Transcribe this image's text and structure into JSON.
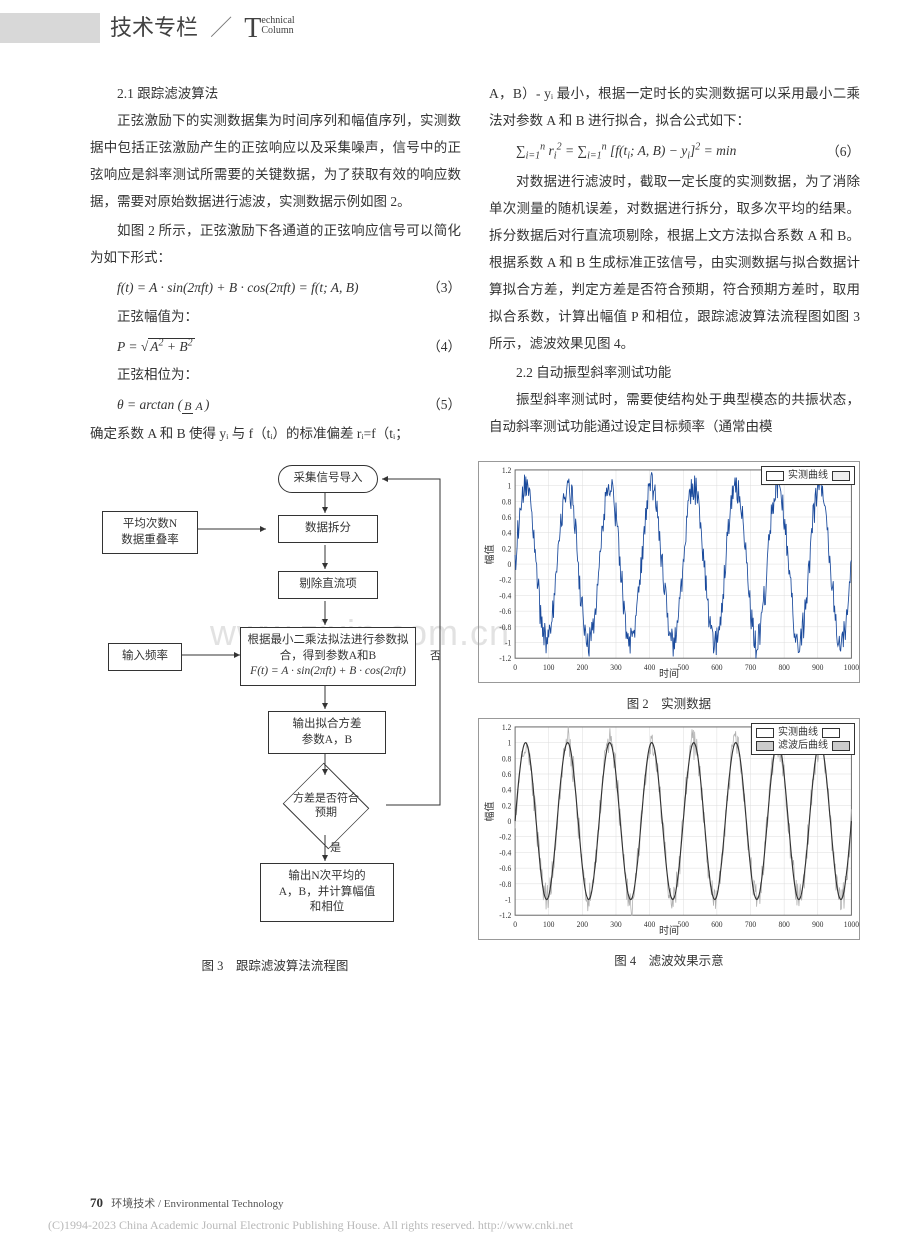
{
  "header": {
    "title_cn": "技术专栏",
    "title_en_top": "echnical",
    "title_en_bot": "Column"
  },
  "watermark": "www.zixin.com.cn",
  "left_column": {
    "subhead1": "2.1 跟踪滤波算法",
    "p1": "正弦激励下的实测数据集为时间序列和幅值序列，实测数据中包括正弦激励产生的正弦响应以及采集噪声，信号中的正弦响应是斜率测试所需要的关键数据，为了获取有效的响应数据，需要对原始数据进行滤波，实测数据示例如图 2。",
    "p2": "如图 2 所示，正弦激励下各通道的正弦响应信号可以简化为如下形式：",
    "eq3_num": "（3）",
    "p3": "正弦幅值为：",
    "eq4_num": "（4）",
    "p4": "正弦相位为：",
    "eq5_num": "（5）",
    "p5": "确定系数 A 和 B 使得 yᵢ 与 f（tᵢ）的标准偏差 rᵢ=f（tᵢ；"
  },
  "right_column": {
    "p1": "A，B）- yᵢ 最小，根据一定时长的实测数据可以采用最小二乘法对参数 A 和 B 进行拟合，拟合公式如下：",
    "eq6_num": "（6）",
    "p2": "对数据进行滤波时，截取一定长度的实测数据，为了消除单次测量的随机误差，对数据进行拆分，取多次平均的结果。拆分数据后对行直流项剔除，根据上文方法拟合系数 A 和 B。根据系数 A 和 B 生成标准正弦信号，由实测数据与拟合数据计算拟合方差，判定方差是否符合预期，符合预期方差时，取用拟合系数，计算出幅值 P 和相位，跟踪滤波算法流程图如图 3 所示，滤波效果见图 4。",
    "subhead2": "2.2 自动振型斜率测试功能",
    "p3": "振型斜率测试时，需要使结构处于典型模态的共振状态，自动斜率测试功能通过设定目标频率（通常由模"
  },
  "flowchart": {
    "n1": "采集信号导入",
    "n2": "数据拆分",
    "side1a": "平均次数N",
    "side1b": "数据重叠率",
    "n3": "剔除直流项",
    "n4a": "根据最小二乘法拟法进行参数拟",
    "n4b": "合，得到参数A和B",
    "n4c": "F(t) = A · sin(2πft) + B · cos(2πft)",
    "side2": "输入频率",
    "n5a": "输出拟合方差",
    "n5b": "参数A，B",
    "n6a": "方差是否符合",
    "n6b": "预期",
    "yes": "是",
    "no": "否",
    "n7a": "输出N次平均的",
    "n7b": "A，B，并计算幅值",
    "n7c": "和相位"
  },
  "captions": {
    "fig3": "图 3　跟踪滤波算法流程图",
    "fig2": "图 2　实测数据",
    "fig4": "图 4　滤波效果示意"
  },
  "chart": {
    "xlim": [
      0,
      1000
    ],
    "ylim": [
      -1.2,
      1.2
    ],
    "xticks": [
      0,
      100,
      200,
      300,
      400,
      500,
      600,
      700,
      800,
      900,
      1000
    ],
    "yticks": [
      -1.2,
      -1,
      -0.8,
      -0.6,
      -0.4,
      -0.2,
      0,
      0.2,
      0.4,
      0.6,
      0.8,
      1,
      1.2
    ],
    "xlabel": "时间",
    "ylabel": "幅值",
    "cycles": 8,
    "amp": 1.0,
    "noise_amp": 0.18,
    "grid_color": "#dcdcdc",
    "axis_color": "#666",
    "fig2": {
      "series_color": "#1a4a9c",
      "legend": [
        "实测曲线"
      ],
      "swatch_fill": [
        "#ffffff"
      ]
    },
    "fig4": {
      "series1_color": "#b0b0b0",
      "series2_color": "#333333",
      "legend": [
        "实测曲线",
        "滤波后曲线"
      ],
      "swatch_fill": [
        "#ffffff",
        "#cccccc"
      ]
    }
  },
  "footer": {
    "page_num": "70",
    "journal": "环境技术 / Environmental Technology",
    "copyright": "(C)1994-2023 China Academic Journal Electronic Publishing House. All rights reserved.    http://www.cnki.net"
  }
}
